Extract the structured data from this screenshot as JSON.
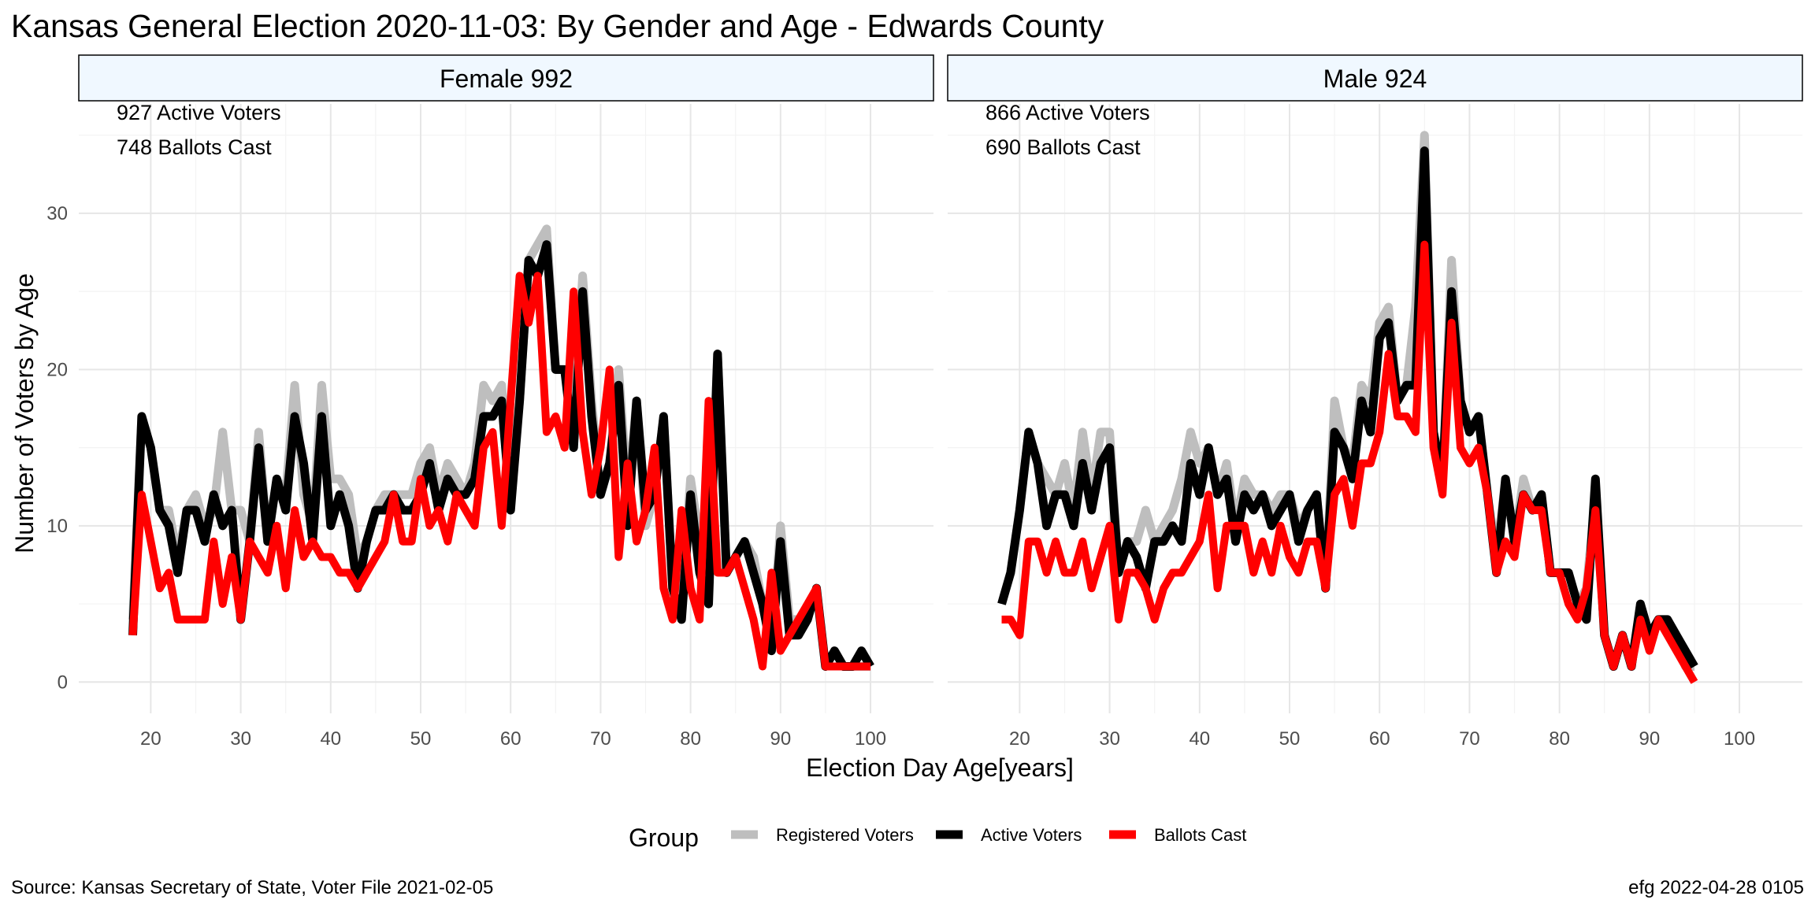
{
  "chart_data": {
    "type": "line",
    "title": "Kansas General Election 2020-11-03:  By Gender and Age - Edwards County",
    "xlabel": "Election Day Age[years]",
    "ylabel": "Number of Voters by Age",
    "xlim": [
      12,
      107
    ],
    "ylim": [
      -2,
      37
    ],
    "xticks": [
      20,
      30,
      40,
      50,
      60,
      70,
      80,
      90,
      100
    ],
    "yticks": [
      0,
      10,
      20,
      30
    ],
    "grid": true,
    "legend": {
      "position": "bottom",
      "title": "Group",
      "entries": [
        {
          "label": "Registered Voters",
          "color": "#bebebe"
        },
        {
          "label": "Active Voters",
          "color": "#000000"
        },
        {
          "label": "Ballots Cast",
          "color": "#ff0000"
        }
      ]
    },
    "panels": [
      {
        "strip": "Female 992",
        "annotations": [
          "927 Active Voters",
          "748 Ballots Cast"
        ],
        "x": [
          18,
          19,
          20,
          21,
          22,
          23,
          24,
          25,
          26,
          27,
          28,
          29,
          30,
          31,
          32,
          33,
          34,
          35,
          36,
          37,
          38,
          39,
          40,
          41,
          42,
          43,
          44,
          45,
          46,
          47,
          48,
          49,
          50,
          51,
          52,
          53,
          54,
          55,
          56,
          57,
          58,
          59,
          60,
          61,
          62,
          63,
          64,
          65,
          66,
          67,
          68,
          69,
          70,
          71,
          72,
          73,
          74,
          75,
          76,
          77,
          78,
          79,
          80,
          81,
          82,
          83,
          84,
          85,
          86,
          87,
          88,
          89,
          90,
          91,
          92,
          93,
          94,
          95,
          96,
          97,
          98,
          99,
          100
        ],
        "series": [
          {
            "name": "Registered Voters",
            "values": [
              4,
              17,
              15,
              11,
              11,
              8,
              11,
              12,
              10,
              11,
              16,
              11,
              11,
              9,
              16,
              9,
              13,
              12,
              19,
              12,
              10,
              19,
              13,
              13,
              12,
              8,
              9,
              11,
              12,
              12,
              12,
              12,
              14,
              15,
              12,
              14,
              13,
              12,
              14,
              19,
              18,
              19,
              12,
              18,
              27,
              28,
              29,
              20,
              20,
              16,
              26,
              18,
              12,
              14,
              20,
              12,
              18,
              10,
              12,
              17,
              6,
              5,
              13,
              9,
              6,
              21,
              7,
              8,
              9,
              8,
              5,
              2,
              10,
              4,
              4,
              4,
              6,
              1,
              2,
              1,
              1,
              1,
              1
            ]
          },
          {
            "name": "Active Voters",
            "values": [
              3,
              17,
              15,
              11,
              10,
              7,
              11,
              11,
              9,
              12,
              10,
              11,
              4,
              9,
              15,
              9,
              13,
              11,
              17,
              14,
              9,
              17,
              10,
              12,
              10,
              6,
              9,
              11,
              11,
              12,
              11,
              11,
              12,
              14,
              11,
              13,
              12,
              12,
              13,
              17,
              17,
              18,
              11,
              18,
              27,
              26,
              28,
              20,
              20,
              15,
              25,
              17,
              12,
              14,
              19,
              10,
              18,
              11,
              12,
              17,
              6,
              4,
              12,
              7,
              5,
              21,
              7,
              8,
              9,
              7,
              5,
              2,
              9,
              3,
              3,
              4,
              6,
              1,
              2,
              1,
              1,
              2,
              1
            ]
          },
          {
            "name": "Ballots Cast",
            "values": [
              3,
              12,
              9,
              6,
              7,
              4,
              4,
              4,
              4,
              9,
              5,
              8,
              4,
              9,
              8,
              7,
              10,
              6,
              11,
              8,
              9,
              8,
              8,
              7,
              7,
              6,
              7,
              8,
              9,
              12,
              9,
              9,
              13,
              10,
              11,
              9,
              12,
              11,
              10,
              15,
              16,
              10,
              18,
              26,
              23,
              26,
              16,
              17,
              15,
              25,
              16,
              12,
              15,
              20,
              8,
              14,
              9,
              11,
              15,
              6,
              4,
              11,
              6,
              4,
              18,
              7,
              7,
              8,
              6,
              4,
              1,
              7,
              2,
              3,
              4,
              5,
              6,
              1,
              1,
              1,
              1,
              1,
              1
            ]
          }
        ]
      },
      {
        "strip": "Male 924",
        "annotations": [
          "866 Active Voters",
          "690 Ballots Cast"
        ],
        "x": [
          18,
          19,
          20,
          21,
          22,
          23,
          24,
          25,
          26,
          27,
          28,
          29,
          30,
          31,
          32,
          33,
          34,
          35,
          36,
          37,
          38,
          39,
          40,
          41,
          42,
          43,
          44,
          45,
          46,
          47,
          48,
          49,
          50,
          51,
          52,
          53,
          54,
          55,
          56,
          57,
          58,
          59,
          60,
          61,
          62,
          63,
          64,
          65,
          66,
          67,
          68,
          69,
          70,
          71,
          72,
          73,
          74,
          75,
          76,
          77,
          78,
          79,
          80,
          81,
          82,
          83,
          84,
          85,
          86,
          87,
          88,
          89,
          90,
          91,
          92,
          93,
          94,
          95
        ],
        "series": [
          {
            "name": "Registered Voters",
            "values": [
              5,
              7,
              11,
              16,
              14,
              13,
              12,
              14,
              11,
              16,
              12,
              16,
              16,
              7,
              9,
              9,
              11,
              9,
              10,
              11,
              13,
              16,
              14,
              15,
              12,
              14,
              10,
              13,
              12,
              12,
              11,
              12,
              12,
              10,
              11,
              12,
              6,
              18,
              15,
              14,
              19,
              18,
              23,
              24,
              18,
              19,
              24,
              35,
              16,
              13,
              27,
              18,
              16,
              17,
              12,
              8,
              13,
              9,
              13,
              11,
              12,
              7,
              7,
              7,
              5,
              6,
              12,
              3,
              1,
              3,
              1,
              5,
              3,
              4,
              4,
              3,
              1,
              1
            ]
          },
          {
            "name": "Active Voters",
            "values": [
              5,
              7,
              11,
              16,
              14,
              10,
              12,
              12,
              10,
              14,
              11,
              14,
              15,
              7,
              9,
              8,
              6,
              9,
              9,
              10,
              9,
              14,
              12,
              15,
              12,
              13,
              9,
              12,
              11,
              12,
              10,
              11,
              12,
              9,
              11,
              12,
              6,
              16,
              15,
              13,
              18,
              16,
              22,
              23,
              18,
              19,
              19,
              34,
              16,
              13,
              25,
              18,
              16,
              17,
              12,
              7,
              13,
              9,
              12,
              11,
              12,
              7,
              7,
              7,
              5,
              4,
              13,
              3,
              1,
              3,
              1,
              5,
              3,
              4,
              4,
              3,
              2,
              1
            ]
          },
          {
            "name": "Ballots Cast",
            "values": [
              4,
              4,
              3,
              9,
              9,
              7,
              9,
              7,
              7,
              9,
              6,
              8,
              10,
              4,
              7,
              7,
              6,
              4,
              6,
              7,
              7,
              8,
              9,
              12,
              6,
              10,
              10,
              10,
              7,
              9,
              7,
              10,
              8,
              7,
              9,
              9,
              6,
              12,
              13,
              10,
              14,
              14,
              16,
              21,
              17,
              17,
              16,
              28,
              15,
              12,
              23,
              15,
              14,
              15,
              12,
              7,
              9,
              8,
              12,
              11,
              11,
              7,
              7,
              5,
              4,
              6,
              11,
              3,
              1,
              3,
              1,
              4,
              2,
              4,
              3,
              2,
              1,
              0
            ]
          }
        ]
      }
    ],
    "caption_left": "Source:  Kansas Secretary of State, Voter File  2021-02-05",
    "caption_right": "efg 2022-04-28 0105"
  }
}
